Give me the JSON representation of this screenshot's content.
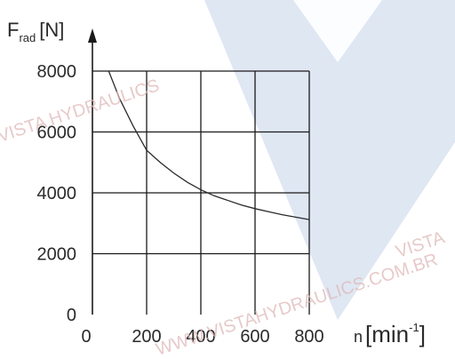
{
  "chart_data": {
    "type": "line",
    "ylabel": "F",
    "ylabel_sub": "rad",
    "ylabel_unit": "[N]",
    "xlabel": "n",
    "xlabel_unit": "[min",
    "xlabel_unit_exp": "-1",
    "xlabel_unit_close": "]",
    "xlim": [
      0,
      800
    ],
    "ylim": [
      0,
      8000
    ],
    "xticks": [
      0,
      200,
      400,
      600,
      800
    ],
    "yticks": [
      0,
      2000,
      4000,
      6000,
      8000
    ],
    "grid": true,
    "series": [
      {
        "x": [
          60,
          100,
          150,
          200,
          250,
          300,
          350,
          400,
          450,
          500,
          550,
          600,
          650,
          700,
          750,
          800
        ],
        "y": [
          8000,
          7100,
          6200,
          5400,
          5000,
          4650,
          4350,
          4100,
          3900,
          3750,
          3600,
          3480,
          3380,
          3280,
          3200,
          3120
        ]
      }
    ],
    "watermark": {
      "lines": [
        "VISTA HYDRAULICS",
        "WWW.VISTAHYDRAULICS.COM.BR",
        "VISTA"
      ]
    },
    "colors": {
      "grid": "#1a1a1a",
      "curve": "#2a2a2a",
      "logo": "#c4d3ea",
      "watermark_text": "#e0b8b8"
    }
  }
}
